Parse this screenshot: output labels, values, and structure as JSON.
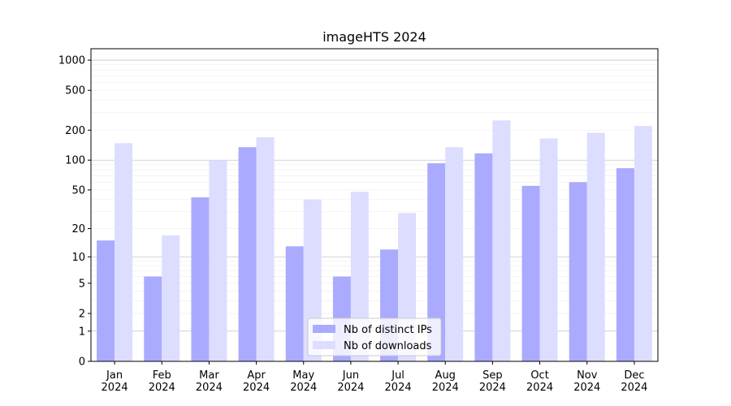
{
  "chart_data": {
    "type": "bar",
    "title": "imageHTS 2024",
    "xlabel": "",
    "ylabel": "",
    "y_scale": "symlog",
    "ylim": [
      0,
      1300
    ],
    "yticks": [
      0,
      1,
      2,
      5,
      10,
      20,
      50,
      100,
      200,
      500,
      1000
    ],
    "ytick_labels": [
      "0",
      "1",
      "2",
      "5",
      "10",
      "20",
      "50",
      "100",
      "200",
      "500",
      "1000"
    ],
    "categories": [
      "Jan\n2024",
      "Feb\n2024",
      "Mar\n2024",
      "Apr\n2024",
      "May\n2024",
      "Jun\n2024",
      "Jul\n2024",
      "Aug\n2024",
      "Sep\n2024",
      "Oct\n2024",
      "Nov\n2024",
      "Dec\n2024"
    ],
    "series": [
      {
        "name": "Nb of distinct IPs",
        "color": "#aaaaff",
        "values": [
          15,
          6,
          42,
          135,
          13,
          6,
          12,
          93,
          117,
          55,
          60,
          83
        ]
      },
      {
        "name": "Nb of downloads",
        "color": "#ddddff",
        "values": [
          148,
          17,
          100,
          170,
          40,
          48,
          29,
          135,
          250,
          165,
          188,
          220
        ]
      }
    ],
    "grid": true,
    "legend_position": "lower-center"
  }
}
